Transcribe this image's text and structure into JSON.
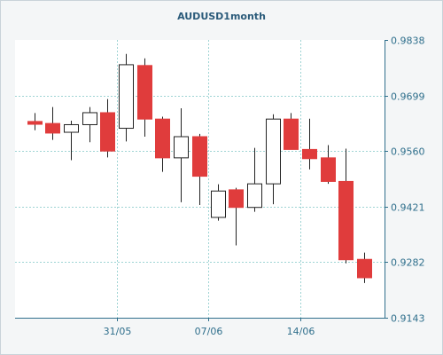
{
  "chart_data": {
    "type": "candlestick",
    "title": "AUDUSD1month",
    "y_ticks": [
      "0.9838",
      "0.9699",
      "0.9560",
      "0.9421",
      "0.9282",
      "0.9143"
    ],
    "ylim": [
      0.9143,
      0.9838
    ],
    "x_ticks": [
      {
        "label": "31/05",
        "index": 4
      },
      {
        "label": "07/06",
        "index": 9
      },
      {
        "label": "14/06",
        "index": 14
      }
    ],
    "grid": true,
    "colors": {
      "up": "#ffffff",
      "down": "#e03c3c",
      "wick": "#222222",
      "grid": "#9fd4d4"
    },
    "candles": [
      {
        "open": 0.9634,
        "high": 0.9655,
        "low": 0.9612,
        "close": 0.9627
      },
      {
        "open": 0.9629,
        "high": 0.967,
        "low": 0.9588,
        "close": 0.9605
      },
      {
        "open": 0.9607,
        "high": 0.9636,
        "low": 0.9537,
        "close": 0.9626
      },
      {
        "open": 0.9626,
        "high": 0.967,
        "low": 0.9582,
        "close": 0.9656
      },
      {
        "open": 0.9656,
        "high": 0.969,
        "low": 0.9544,
        "close": 0.956
      },
      {
        "open": 0.9617,
        "high": 0.9803,
        "low": 0.9584,
        "close": 0.9776
      },
      {
        "open": 0.9774,
        "high": 0.9792,
        "low": 0.9596,
        "close": 0.964
      },
      {
        "open": 0.964,
        "high": 0.9646,
        "low": 0.9508,
        "close": 0.9543
      },
      {
        "open": 0.9543,
        "high": 0.9667,
        "low": 0.9432,
        "close": 0.9596
      },
      {
        "open": 0.9596,
        "high": 0.9603,
        "low": 0.9425,
        "close": 0.9497
      },
      {
        "open": 0.9394,
        "high": 0.9477,
        "low": 0.9386,
        "close": 0.946
      },
      {
        "open": 0.9463,
        "high": 0.9468,
        "low": 0.9324,
        "close": 0.9419
      },
      {
        "open": 0.9419,
        "high": 0.9568,
        "low": 0.9408,
        "close": 0.9478
      },
      {
        "open": 0.9478,
        "high": 0.9652,
        "low": 0.9427,
        "close": 0.964
      },
      {
        "open": 0.964,
        "high": 0.9655,
        "low": 0.9564,
        "close": 0.9564
      },
      {
        "open": 0.9564,
        "high": 0.9641,
        "low": 0.9514,
        "close": 0.9541
      },
      {
        "open": 0.9543,
        "high": 0.9575,
        "low": 0.9478,
        "close": 0.9484
      },
      {
        "open": 0.9484,
        "high": 0.9566,
        "low": 0.9279,
        "close": 0.9288
      },
      {
        "open": 0.9289,
        "high": 0.9306,
        "low": 0.923,
        "close": 0.9243
      }
    ]
  }
}
